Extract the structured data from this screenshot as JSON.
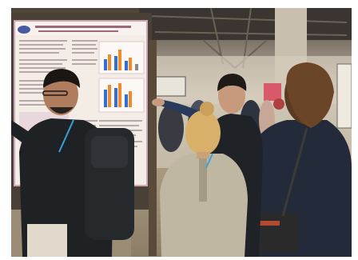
{
  "photo": {
    "subject": "poster-session-crowd",
    "poster_title": "",
    "poster_chart_colors": [
      "#2f6fd6",
      "#f08a2a",
      "#8a8a8a"
    ],
    "palette": {
      "ceiling": "#3a3530",
      "hall_wall": "#cfc6b5",
      "floor": "#9d8f78",
      "poster_panel": "#f4ede6",
      "poster_border": "#c9a8b8",
      "board_frame": "#4a4038",
      "jacket_dark": "#1f2225",
      "coat_beige": "#bfb7a2",
      "blazer_navy": "#232a3a",
      "hair_blonde": "#d8b06a",
      "hair_brown": "#5a3a22"
    }
  }
}
